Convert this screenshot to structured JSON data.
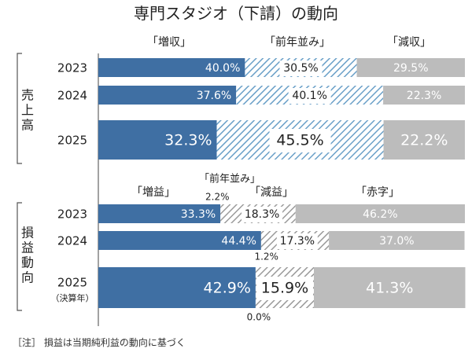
{
  "chart_data": {
    "title": "専門スタジオ（下請）の動向",
    "type": "bar",
    "stacked": "percent",
    "colors": {
      "increase": "#3f6fa3",
      "flat": "#6aa0c8",
      "decrease": "#bcbcbc",
      "flat_small": "#9a9a9a"
    },
    "panels": [
      {
        "group_label": "売上高",
        "categories": [
          "「増収」",
          "「前年並み」",
          "「減収」"
        ],
        "rows": [
          {
            "year": "2023",
            "sub": "",
            "values": [
              40.0,
              30.5,
              29.5
            ],
            "labels": [
              "40.0%",
              "30.5%",
              "29.5%"
            ]
          },
          {
            "year": "2024",
            "sub": "",
            "values": [
              37.6,
              40.1,
              22.3
            ],
            "labels": [
              "37.6%",
              "40.1%",
              "22.3%"
            ]
          },
          {
            "year": "2025",
            "sub": "",
            "values": [
              32.3,
              45.5,
              22.2
            ],
            "labels": [
              "32.3%",
              "45.5%",
              "22.2%"
            ]
          }
        ]
      },
      {
        "group_label": "損益動向",
        "categories": [
          "「増益」",
          "「前年並み」",
          "「減益」",
          "「赤字」"
        ],
        "rows": [
          {
            "year": "2023",
            "sub": "",
            "values": [
              33.3,
              2.2,
              18.3,
              46.2
            ],
            "labels": [
              "33.3%",
              "2.2%",
              "18.3%",
              "46.2%"
            ]
          },
          {
            "year": "2024",
            "sub": "",
            "values": [
              44.4,
              1.2,
              17.3,
              37.0
            ],
            "labels": [
              "44.4%",
              "1.2%",
              "17.3%",
              "37.0%"
            ]
          },
          {
            "year": "2025",
            "sub": "（決算年）",
            "values": [
              42.9,
              0.0,
              15.9,
              41.3
            ],
            "labels": [
              "42.9%",
              "0.0%",
              "15.9%",
              "41.3%"
            ]
          }
        ]
      }
    ]
  },
  "footnote": "［注］ 損益は当期純利益の動向に基づく"
}
